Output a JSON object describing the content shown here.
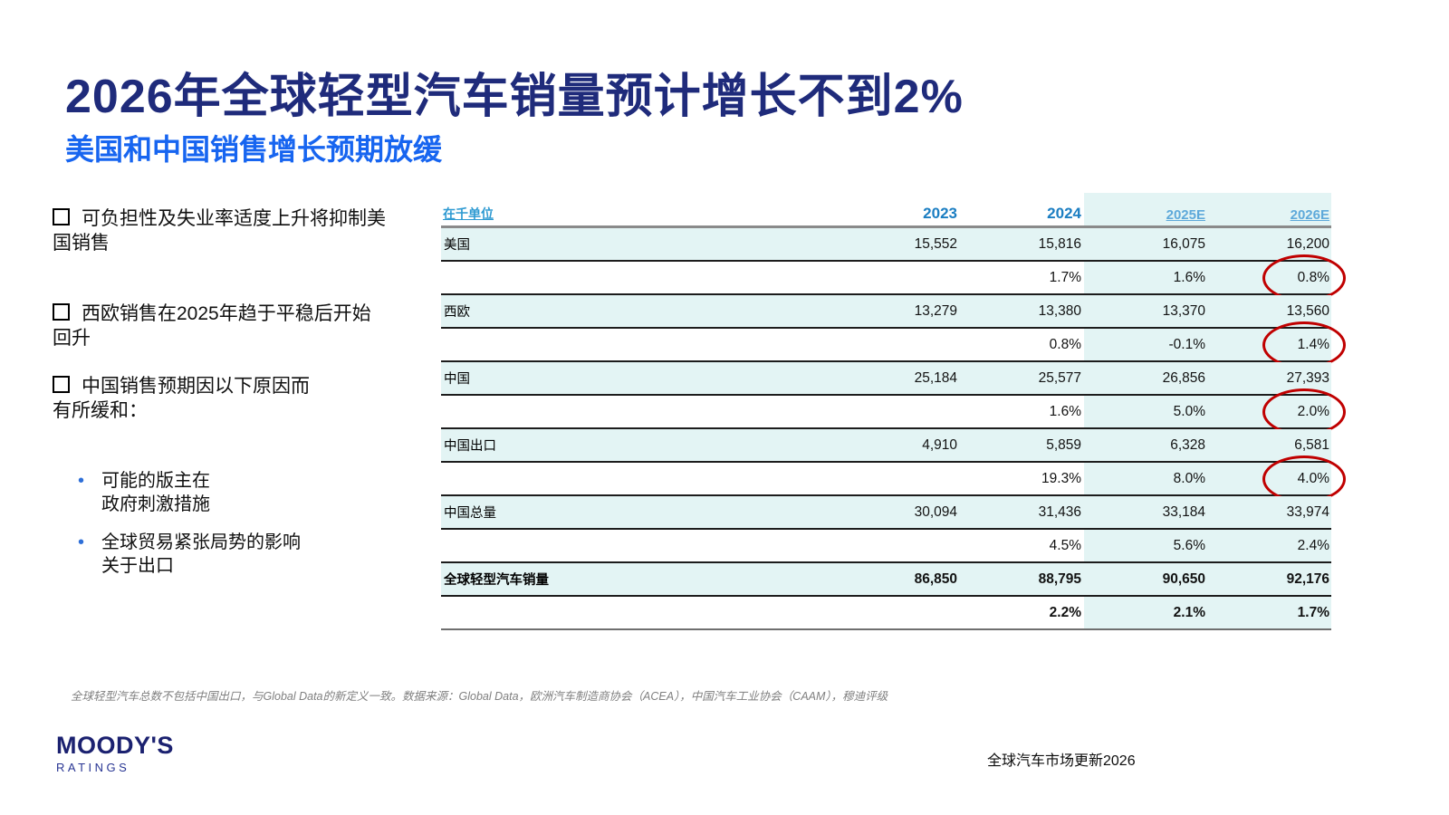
{
  "slide": {
    "title": "2026年全球轻型汽车销量预计增长不到2%",
    "subtitle": "美国和中国销售增长预期放缓",
    "footnote": "全球轻型汽车总数不包括中国出口，与Global Data的新定义一致。数据来源：Global Data，欧洲汽车制造商协会（ACEA），中国汽车工业协会（CAAM），穆迪评级",
    "footer_right": "全球汽车市场更新2026",
    "logo": {
      "line1": "MOODY'S",
      "line2": "RATINGS"
    }
  },
  "bullets": [
    {
      "text": "可负担性及失业率适度上升将抑制美\n国销售",
      "subitems": []
    },
    {
      "text": "西欧销售在2025年趋于平稳后开始\n回升",
      "subitems": []
    },
    {
      "text": "中国销售预期因以下原因而\n有所缓和：",
      "subitems": [
        "可能的版主在\n政府刺激措施",
        "全球贸易紧张局势的影响\n关于出口"
      ]
    }
  ],
  "colors": {
    "title_navy": "#1f2b7b",
    "subtitle_blue": "#1765f0",
    "header_year_blue": "#1b7ec2",
    "header_estimate_blue": "#5ea9da",
    "unit_label_blue": "#2e9ad2",
    "highlight_cyan": "#e3f4f4",
    "circle_red": "#c00000",
    "footnote_gray": "#808080",
    "logo_navy": "#1b2170"
  },
  "chart_data": {
    "type": "table",
    "unit_label": "在千单位",
    "columns": [
      "2023",
      "2024",
      "2025E",
      "2026E"
    ],
    "estimate_columns": [
      "2025E",
      "2026E"
    ],
    "highlight_columns": [
      "2025E",
      "2026E"
    ],
    "rows": [
      {
        "label": "美国",
        "values": [
          "15,552",
          "15,816",
          "16,075",
          "16,200"
        ],
        "growth": [
          "",
          "1.7%",
          "1.6%",
          "0.8%"
        ],
        "growth_circled": true,
        "bold": false
      },
      {
        "label": "西欧",
        "values": [
          "13,279",
          "13,380",
          "13,370",
          "13,560"
        ],
        "growth": [
          "",
          "0.8%",
          "-0.1%",
          "1.4%"
        ],
        "growth_circled": true,
        "bold": false
      },
      {
        "label": "中国",
        "values": [
          "25,184",
          "25,577",
          "26,856",
          "27,393"
        ],
        "growth": [
          "",
          "1.6%",
          "5.0%",
          "2.0%"
        ],
        "growth_circled": true,
        "bold": false
      },
      {
        "label": "中国出口",
        "values": [
          "4,910",
          "5,859",
          "6,328",
          "6,581"
        ],
        "growth": [
          "",
          "19.3%",
          "8.0%",
          "4.0%"
        ],
        "growth_circled": true,
        "bold": false
      },
      {
        "label": "中国总量",
        "values": [
          "30,094",
          "31,436",
          "33,184",
          "33,974"
        ],
        "growth": [
          "",
          "4.5%",
          "5.6%",
          "2.4%"
        ],
        "growth_circled": false,
        "bold": false
      },
      {
        "label": "全球轻型汽车销量",
        "values": [
          "86,850",
          "88,795",
          "90,650",
          "92,176"
        ],
        "growth": [
          "",
          "2.2%",
          "2.1%",
          "1.7%"
        ],
        "growth_circled": false,
        "bold": true
      }
    ]
  }
}
